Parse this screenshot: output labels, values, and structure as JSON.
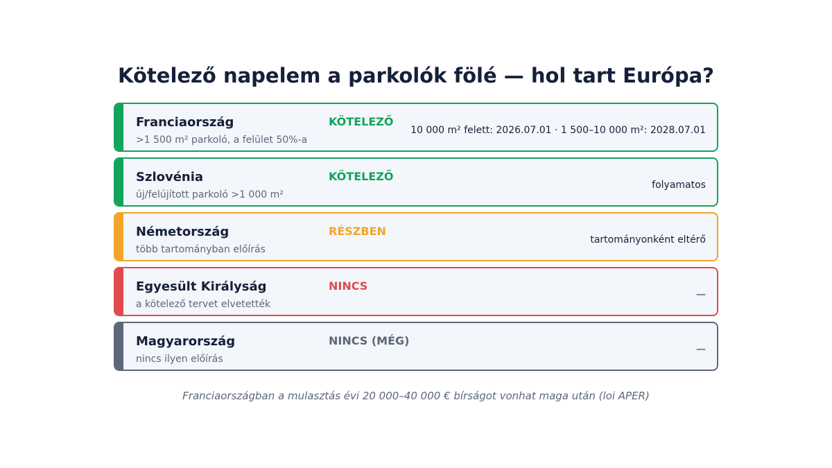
{
  "title": "Kötelező napelem a parkolók fölé — hol tart Európa?",
  "colors": {
    "green": "#12a35c",
    "orange": "#f2a52a",
    "red": "#e04a4e",
    "gray": "#5c6779",
    "title": "#15203a",
    "card_background": "#f3f6fa"
  },
  "countries": [
    {
      "name": "Franciaország",
      "description": ">1 500 m² parkoló, a felület 50%-a",
      "status": "KÖTELEZŐ",
      "detail": "10 000 m² felett: 2026.07.01 · 1 500–10 000 m²: 2028.07.01"
    },
    {
      "name": "Szlovénia",
      "description": "új/felújított parkoló >1 000 m²",
      "status": "KÖTELEZŐ",
      "detail": "folyamatos"
    },
    {
      "name": "Németország",
      "description": "több tartományban előírás",
      "status": "RÉSZBEN",
      "detail": "tartományonként eltérő"
    },
    {
      "name": "Egyesült Királyság",
      "description": "a kötelező tervet elvetették",
      "status": "NINCS",
      "detail": "—"
    },
    {
      "name": "Magyarország",
      "description": "nincs ilyen előírás",
      "status": "NINCS (MÉG)",
      "detail": "—"
    }
  ],
  "footnote": "Franciaországban a mulasztás évi 20 000–40 000 € bírságot vonhat maga után (loi APER)"
}
